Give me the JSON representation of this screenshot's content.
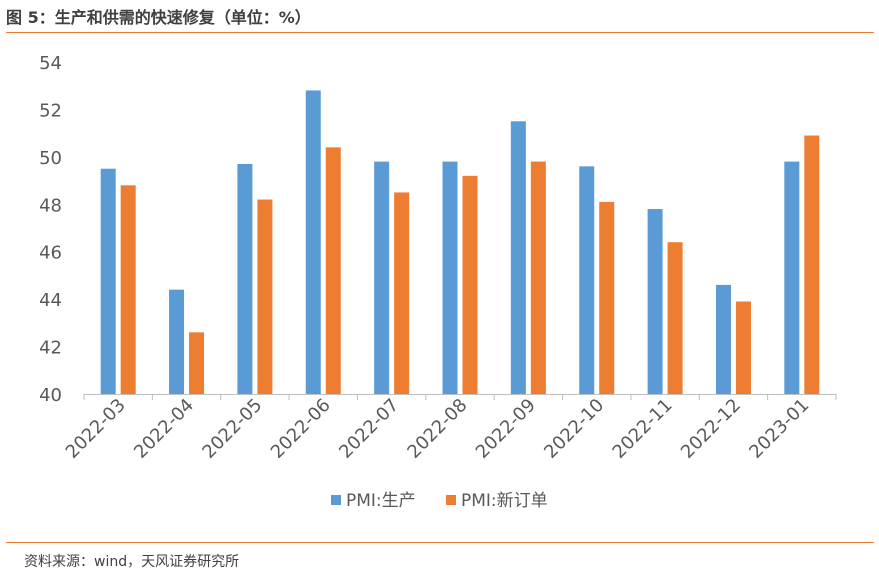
{
  "header": {
    "title": "图 5：生产和供需的快速修复（单位：%）"
  },
  "footer": {
    "source": "资料来源：wind，天风证券研究所"
  },
  "colors": {
    "series1": "#5B9BD5",
    "series2": "#ED7D31",
    "rule": "#ED7D31"
  },
  "chart_data": {
    "type": "bar",
    "title": "图 5：生产和供需的快速修复（单位：%）",
    "xlabel": "",
    "ylabel": "",
    "ylim": [
      40,
      54
    ],
    "yticks": [
      40,
      42,
      44,
      46,
      48,
      50,
      52,
      54
    ],
    "grid": false,
    "legend_position": "bottom",
    "categories": [
      "2022-03",
      "2022-04",
      "2022-05",
      "2022-06",
      "2022-07",
      "2022-08",
      "2022-09",
      "2022-10",
      "2022-11",
      "2022-12",
      "2023-01"
    ],
    "series": [
      {
        "name": "PMI:生产",
        "values": [
          49.5,
          44.4,
          49.7,
          52.8,
          49.8,
          49.8,
          51.5,
          49.6,
          47.8,
          44.6,
          49.8
        ]
      },
      {
        "name": "PMI:新订单",
        "values": [
          48.8,
          42.6,
          48.2,
          50.4,
          48.5,
          49.2,
          49.8,
          48.1,
          46.4,
          43.9,
          50.9
        ]
      }
    ]
  }
}
